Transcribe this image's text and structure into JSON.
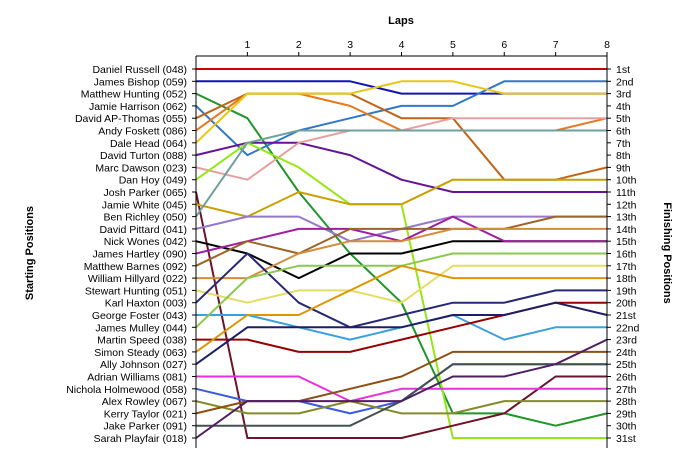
{
  "chart_data": {
    "type": "line",
    "title": "Laps",
    "y_left_title": "Starting Positions",
    "y_right_title": "Finishing Positions",
    "x_ticks": [
      "1",
      "2",
      "3",
      "4",
      "5",
      "6",
      "7",
      "8"
    ],
    "x_range": [
      0,
      8
    ],
    "y_range": [
      1,
      31
    ],
    "grid": false,
    "legend": "none",
    "starting_labels": [
      "Daniel Russell (048)",
      "James Bishop (059)",
      "Matthew Hunting (052)",
      "Jamie Harrison (062)",
      "David AP-Thomas (055)",
      "Andy Foskett (086)",
      "Dale Head (064)",
      "David Turton (088)",
      "Marc Dawson (023)",
      "Dan Hoy (049)",
      "Josh Parker (065)",
      "Jamie White (045)",
      "Ben Richley (050)",
      "David Pittard (041)",
      "Nick Wones (042)",
      "James Hartley (090)",
      "Matthew Barnes (092)",
      "William Hillyard (022)",
      "Stewart Hunting (051)",
      "Karl Haxton (003)",
      "George Foster (043)",
      "James Mulley (044)",
      "Martin Speed (038)",
      "Simon Steady (063)",
      "Ally Johnson (027)",
      "Adrian Williams (081)",
      "Nichola Holmewood (058)",
      "Alex Rowley (067)",
      "Kerry Taylor (021)",
      "Jake Parker (091)",
      "Sarah Playfair (018)"
    ],
    "finishing_labels": [
      "1st",
      "2nd",
      "3rd",
      "4th",
      "5th",
      "6th",
      "7th",
      "8th",
      "9th",
      "10th",
      "11th",
      "12th",
      "13th",
      "14th",
      "15th",
      "16th",
      "17th",
      "18th",
      "19th",
      "20th",
      "21st",
      "22nd",
      "23rd",
      "24th",
      "25th",
      "26th",
      "27th",
      "28th",
      "29th",
      "30th",
      "31st"
    ],
    "series": [
      {
        "color": "#cc0000",
        "positions": [
          1,
          1,
          1,
          1,
          1,
          1,
          1,
          1,
          1
        ]
      },
      {
        "color": "#1414b4",
        "positions": [
          2,
          2,
          2,
          2,
          3,
          3,
          3,
          3,
          3
        ]
      },
      {
        "color": "#1e9628",
        "positions": [
          3,
          5,
          11,
          16,
          20,
          29,
          29,
          30,
          29
        ]
      },
      {
        "color": "#3278c8",
        "positions": [
          4,
          8,
          6,
          5,
          4,
          4,
          2,
          2,
          2
        ]
      },
      {
        "color": "#c06418",
        "positions": [
          5,
          3,
          3,
          3,
          5,
          5,
          10,
          10,
          9
        ]
      },
      {
        "color": "#e6781e",
        "positions": [
          6,
          3,
          3,
          4,
          6,
          6,
          6,
          6,
          5
        ]
      },
      {
        "color": "#e6c814",
        "positions": [
          7,
          3,
          3,
          3,
          2,
          2,
          3,
          3,
          3
        ]
      },
      {
        "color": "#641496",
        "positions": [
          8,
          7,
          7,
          8,
          10,
          11,
          11,
          11,
          11
        ]
      },
      {
        "color": "#e6a0a0",
        "positions": [
          9,
          10,
          7,
          6,
          6,
          5,
          5,
          5,
          5
        ]
      },
      {
        "color": "#96e614",
        "positions": [
          10,
          7,
          9,
          12,
          12,
          31,
          31,
          31,
          31
        ]
      },
      {
        "color": "#6e1428",
        "positions": [
          11,
          31,
          31,
          31,
          31,
          30,
          29,
          26,
          26
        ]
      },
      {
        "color": "#c8a000",
        "positions": [
          12,
          13,
          11,
          12,
          12,
          10,
          10,
          10,
          10
        ]
      },
      {
        "color": "#6ea0a0",
        "positions": [
          13,
          7,
          6,
          6,
          6,
          6,
          6,
          6,
          6
        ]
      },
      {
        "color": "#9678c8",
        "positions": [
          14,
          13,
          13,
          15,
          14,
          13,
          13,
          13,
          13
        ]
      },
      {
        "color": "#000000",
        "positions": [
          15,
          16,
          18,
          16,
          16,
          15,
          15,
          15,
          15
        ]
      },
      {
        "color": "#a01ea0",
        "positions": [
          16,
          15,
          14,
          14,
          15,
          13,
          15,
          15,
          15
        ]
      },
      {
        "color": "#9c6428",
        "positions": [
          17,
          15,
          16,
          14,
          14,
          14,
          14,
          13,
          13
        ]
      },
      {
        "color": "#d28c3c",
        "positions": [
          18,
          18,
          16,
          15,
          15,
          14,
          14,
          14,
          14
        ]
      },
      {
        "color": "#e6dc64",
        "positions": [
          19,
          20,
          19,
          19,
          20,
          17,
          17,
          17,
          17
        ]
      },
      {
        "color": "#282878",
        "positions": [
          20,
          16,
          20,
          22,
          21,
          20,
          20,
          19,
          19
        ]
      },
      {
        "color": "#3ca0dc",
        "positions": [
          21,
          21,
          22,
          23,
          22,
          21,
          23,
          22,
          22
        ]
      },
      {
        "color": "#8cc850",
        "positions": [
          22,
          18,
          17,
          17,
          17,
          16,
          16,
          16,
          16
        ]
      },
      {
        "color": "#960000",
        "positions": [
          23,
          23,
          24,
          24,
          23,
          22,
          21,
          20,
          20
        ]
      },
      {
        "color": "#dc9600",
        "positions": [
          24,
          21,
          21,
          19,
          17,
          18,
          18,
          18,
          18
        ]
      },
      {
        "color": "#1e1e64",
        "positions": [
          25,
          22,
          22,
          22,
          22,
          21,
          21,
          20,
          21
        ]
      },
      {
        "color": "#e632dc",
        "positions": [
          26,
          26,
          26,
          28,
          27,
          27,
          27,
          27,
          27
        ]
      },
      {
        "color": "#3c5adc",
        "positions": [
          27,
          28,
          28,
          29,
          28,
          25,
          25,
          25,
          25
        ]
      },
      {
        "color": "#828c28",
        "positions": [
          28,
          29,
          29,
          28,
          29,
          29,
          28,
          28,
          28
        ]
      },
      {
        "color": "#8c5014",
        "positions": [
          29,
          28,
          28,
          27,
          26,
          24,
          24,
          24,
          24
        ]
      },
      {
        "color": "#465050",
        "positions": [
          30,
          30,
          30,
          30,
          28,
          25,
          25,
          25,
          25
        ]
      },
      {
        "color": "#501e64",
        "positions": [
          31,
          28,
          28,
          28,
          28,
          26,
          26,
          25,
          23
        ]
      }
    ]
  }
}
